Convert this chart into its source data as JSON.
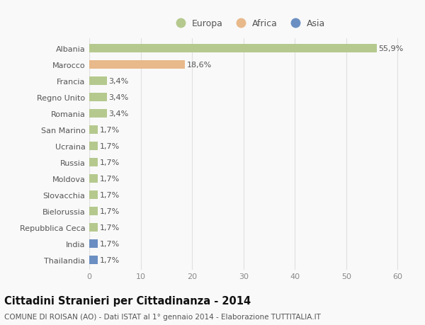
{
  "categories": [
    "Albania",
    "Marocco",
    "Francia",
    "Regno Unito",
    "Romania",
    "San Marino",
    "Ucraina",
    "Russia",
    "Moldova",
    "Slovacchia",
    "Bielorussia",
    "Repubblica Ceca",
    "India",
    "Thailandia"
  ],
  "values": [
    55.9,
    18.6,
    3.4,
    3.4,
    3.4,
    1.7,
    1.7,
    1.7,
    1.7,
    1.7,
    1.7,
    1.7,
    1.7,
    1.7
  ],
  "labels": [
    "55,9%",
    "18,6%",
    "3,4%",
    "3,4%",
    "3,4%",
    "1,7%",
    "1,7%",
    "1,7%",
    "1,7%",
    "1,7%",
    "1,7%",
    "1,7%",
    "1,7%",
    "1,7%"
  ],
  "continents": [
    "Europa",
    "Africa",
    "Europa",
    "Europa",
    "Europa",
    "Europa",
    "Europa",
    "Europa",
    "Europa",
    "Europa",
    "Europa",
    "Europa",
    "Asia",
    "Asia"
  ],
  "colors": {
    "Europa": "#b5c98e",
    "Africa": "#e8b98a",
    "Asia": "#6b8fc2"
  },
  "legend_entries": [
    "Europa",
    "Africa",
    "Asia"
  ],
  "xlim": [
    0,
    62
  ],
  "xticks": [
    0,
    10,
    20,
    30,
    40,
    50,
    60
  ],
  "title": "Cittadini Stranieri per Cittadinanza - 2014",
  "subtitle": "COMUNE DI ROISAN (AO) - Dati ISTAT al 1° gennaio 2014 - Elaborazione TUTTITALIA.IT",
  "background_color": "#f9f9f9",
  "grid_color": "#e0e0e0",
  "bar_height": 0.55,
  "label_fontsize": 8,
  "title_fontsize": 10.5,
  "subtitle_fontsize": 7.5
}
